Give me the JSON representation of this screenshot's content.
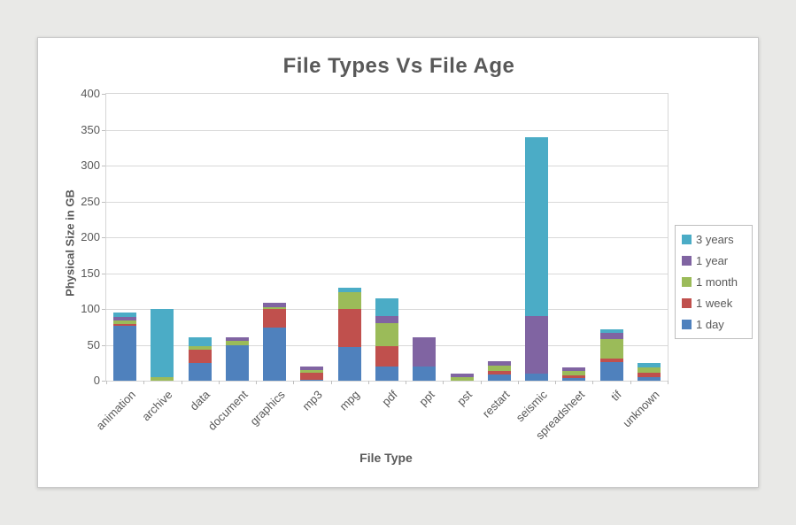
{
  "chart_data": {
    "type": "bar",
    "stacked": true,
    "title": "File Types Vs File Age",
    "xlabel": "File Type",
    "ylabel": "Physical Size in GB",
    "ylim": [
      0,
      400
    ],
    "ytick_step": 50,
    "grid": true,
    "legend_position": "right",
    "categories": [
      "animation",
      "archive",
      "data",
      "document",
      "graphics",
      "mp3",
      "mpg",
      "pdf",
      "ppt",
      "pst",
      "restart",
      "seismic",
      "spreadsheet",
      "tif",
      "unknown"
    ],
    "series": [
      {
        "name": "1 day",
        "color": "#4F81BD",
        "values": [
          77,
          0,
          25,
          50,
          74,
          1,
          47,
          20,
          20,
          0,
          9,
          10,
          4,
          26,
          5
        ]
      },
      {
        "name": "1 week",
        "color": "#C0504D",
        "values": [
          2,
          0,
          18,
          0,
          26,
          10,
          53,
          28,
          0,
          0,
          5,
          0,
          3,
          5,
          6
        ]
      },
      {
        "name": "1 month",
        "color": "#9BBB59",
        "values": [
          5,
          5,
          5,
          5,
          3,
          4,
          23,
          32,
          0,
          5,
          7,
          0,
          7,
          27,
          7
        ]
      },
      {
        "name": "1 year",
        "color": "#8064A2",
        "values": [
          5,
          0,
          0,
          5,
          6,
          5,
          0,
          10,
          40,
          5,
          6,
          80,
          5,
          9,
          0
        ]
      },
      {
        "name": "3 years",
        "color": "#4BACC6",
        "values": [
          6,
          95,
          12,
          0,
          0,
          0,
          7,
          25,
          0,
          0,
          0,
          250,
          0,
          5,
          7
        ]
      }
    ],
    "legend_order": [
      "3 years",
      "1 year",
      "1 month",
      "1 week",
      "1 day"
    ],
    "colors": {
      "text": "#595959",
      "gridline": "#d9d9d9",
      "axis": "#bfbfbf",
      "card_background": "#ffffff",
      "page_background": "#e9e9e7"
    }
  }
}
